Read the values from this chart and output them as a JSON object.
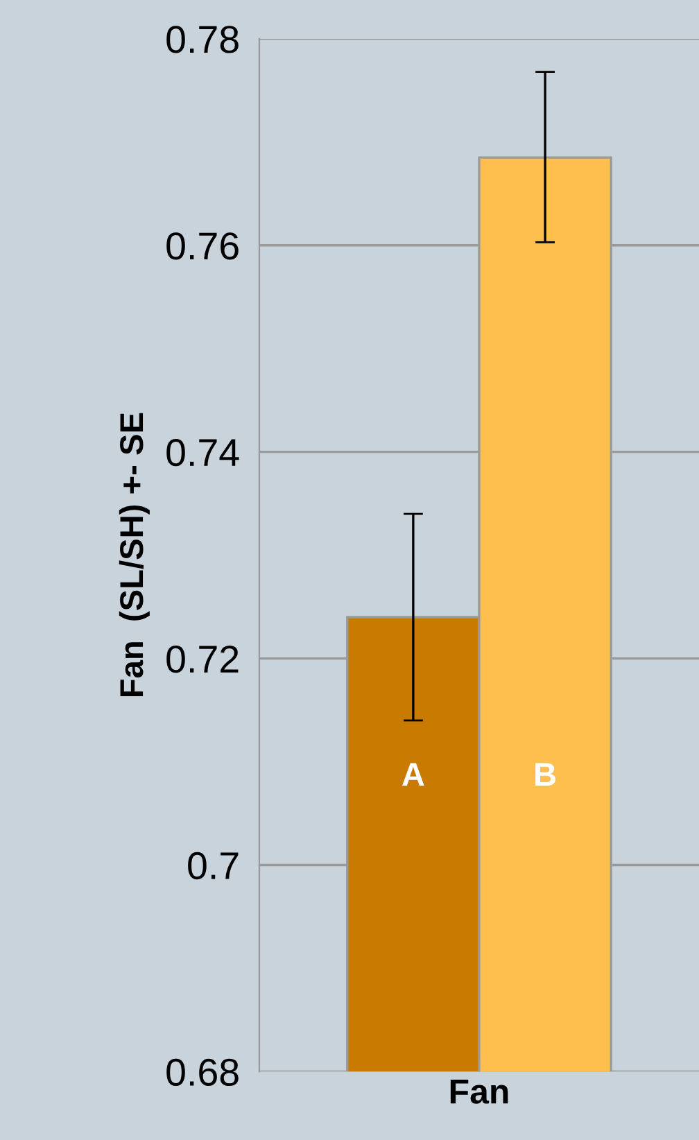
{
  "chart_data": {
    "type": "bar",
    "ylabel": "Fan  (SL/SH) +- SE",
    "categories": [
      "Fan"
    ],
    "series": [
      {
        "color": "#c97a00",
        "values": [
          0.724
        ],
        "errors": [
          [
            0.714,
            0.734
          ]
        ]
      },
      {
        "color": "#ffbf4f",
        "values": [
          0.7685
        ],
        "errors": [
          [
            0.7603,
            0.7768
          ]
        ]
      }
    ],
    "annotations": [
      "A",
      "B"
    ],
    "ylim": [
      0.68,
      0.78
    ],
    "yticks": [
      0.68,
      0.7,
      0.72,
      0.74,
      0.76,
      0.78
    ],
    "grid": "y",
    "legend": false
  }
}
